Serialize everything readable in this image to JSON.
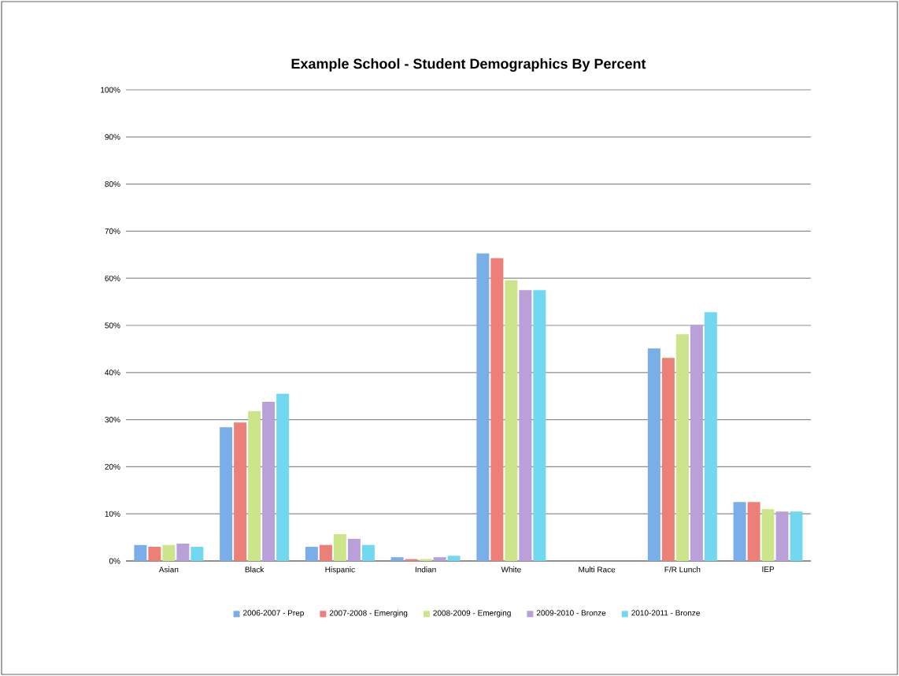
{
  "chart_data": {
    "type": "bar",
    "title": "Example School - Student Demographics By Percent",
    "categories": [
      "Asian",
      "Black",
      "Hispanic",
      "Indian",
      "White",
      "Multi Race",
      "F/R Lunch",
      "IEP"
    ],
    "series": [
      {
        "name": "2006-2007 - Prep",
        "color": "#7aaee8",
        "values": [
          3.4,
          28.4,
          3.0,
          0.8,
          65.3,
          null,
          45.1,
          12.5
        ]
      },
      {
        "name": "2007-2008 - Emerging",
        "color": "#ec7f77",
        "values": [
          3.0,
          29.4,
          3.4,
          0.4,
          64.3,
          null,
          43.1,
          12.5
        ]
      },
      {
        "name": "2008-2009 - Emerging",
        "color": "#cce58a",
        "values": [
          3.4,
          31.8,
          5.7,
          0.4,
          59.6,
          null,
          48.1,
          11.0
        ]
      },
      {
        "name": "2009-2010 - Bronze",
        "color": "#b9a0d8",
        "values": [
          3.7,
          33.8,
          4.7,
          0.8,
          57.5,
          null,
          50.1,
          10.5
        ]
      },
      {
        "name": "2010-2011 - Bronze",
        "color": "#72d8f0",
        "values": [
          3.0,
          35.5,
          3.4,
          1.1,
          57.5,
          null,
          52.8,
          10.5
        ]
      }
    ],
    "ylim": [
      0,
      100
    ],
    "yticks": [
      {
        "value": 0,
        "label": "0%"
      },
      {
        "value": 10,
        "label": "10%"
      },
      {
        "value": 20,
        "label": "20%"
      },
      {
        "value": 30,
        "label": "30%"
      },
      {
        "value": 40,
        "label": "40%"
      },
      {
        "value": 50,
        "label": "50%"
      },
      {
        "value": 60,
        "label": "60%"
      },
      {
        "value": 70,
        "label": "70%"
      },
      {
        "value": 80,
        "label": "80%"
      },
      {
        "value": 90,
        "label": "90%"
      },
      {
        "value": 100,
        "label": "100%"
      }
    ],
    "grid": "y",
    "legend": "bottom"
  }
}
